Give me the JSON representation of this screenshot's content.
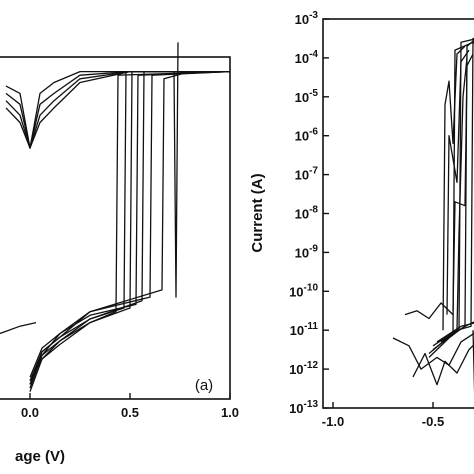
{
  "chart_data": [
    {
      "type": "line",
      "panel_label": "(a)",
      "xlabel": "age (V)",
      "ylabel": "",
      "xlim": [
        -0.2,
        1.0
      ],
      "x_ticks": [
        {
          "value": 0.0,
          "label": "0.0"
        },
        {
          "value": 0.5,
          "label": "0.5"
        },
        {
          "value": 1.0,
          "label": "1.0"
        }
      ],
      "y_scale": "log",
      "ylim_exp": [
        -13,
        -3
      ],
      "y_ticks": [],
      "grid": false,
      "legend": "none",
      "series": [
        {
          "values": [
            [
              -0.12,
              -4.4
            ],
            [
              -0.05,
              -4.6
            ],
            [
              0.0,
              -6.1
            ],
            [
              0.05,
              -4.6
            ],
            [
              0.12,
              -4.3
            ],
            [
              0.25,
              -4.0
            ],
            [
              0.5,
              -4.0
            ],
            [
              1.0,
              -4.0
            ]
          ]
        },
        {
          "values": [
            [
              -0.12,
              -4.6
            ],
            [
              -0.05,
              -4.9
            ],
            [
              0.0,
              -6.1
            ],
            [
              0.05,
              -4.9
            ],
            [
              0.12,
              -4.6
            ],
            [
              0.25,
              -4.1
            ],
            [
              0.5,
              -4.0
            ],
            [
              1.0,
              -4.0
            ]
          ]
        },
        {
          "values": [
            [
              -0.12,
              -4.8
            ],
            [
              -0.05,
              -5.2
            ],
            [
              0.0,
              -6.1
            ],
            [
              0.05,
              -5.2
            ],
            [
              0.12,
              -4.8
            ],
            [
              0.25,
              -4.2
            ],
            [
              0.5,
              -4.0
            ],
            [
              1.0,
              -4.0
            ]
          ]
        },
        {
          "values": [
            [
              -0.12,
              -5.0
            ],
            [
              -0.05,
              -5.4
            ],
            [
              0.0,
              -6.1
            ],
            [
              0.05,
              -5.4
            ],
            [
              0.12,
              -5.0
            ],
            [
              0.25,
              -4.3
            ],
            [
              0.5,
              -4.0
            ],
            [
              1.0,
              -4.0
            ]
          ]
        },
        {
          "values": [
            [
              0.0,
              -12.7
            ],
            [
              0.06,
              -11.8
            ],
            [
              0.15,
              -11.4
            ],
            [
              0.3,
              -10.9
            ],
            [
              0.43,
              -10.6
            ],
            [
              0.44,
              -4.1
            ],
            [
              1.0,
              -4.0
            ]
          ]
        },
        {
          "values": [
            [
              0.0,
              -12.6
            ],
            [
              0.06,
              -11.7
            ],
            [
              0.15,
              -11.3
            ],
            [
              0.3,
              -10.8
            ],
            [
              0.47,
              -10.5
            ],
            [
              0.48,
              -4.0
            ],
            [
              1.0,
              -4.0
            ]
          ]
        },
        {
          "values": [
            [
              0.0,
              -12.5
            ],
            [
              0.06,
              -11.9
            ],
            [
              0.15,
              -11.5
            ],
            [
              0.3,
              -10.9
            ],
            [
              0.5,
              -10.5
            ],
            [
              0.51,
              -4.0
            ],
            [
              1.0,
              -4.0
            ]
          ]
        },
        {
          "values": [
            [
              0.0,
              -12.4
            ],
            [
              0.06,
              -11.6
            ],
            [
              0.15,
              -11.2
            ],
            [
              0.3,
              -10.7
            ],
            [
              0.53,
              -10.4
            ],
            [
              0.54,
              -4.1
            ],
            [
              1.0,
              -4.0
            ]
          ]
        },
        {
          "values": [
            [
              0.0,
              -12.8
            ],
            [
              0.06,
              -11.9
            ],
            [
              0.15,
              -11.4
            ],
            [
              0.3,
              -10.8
            ],
            [
              0.56,
              -10.3
            ],
            [
              0.57,
              -4.0
            ],
            [
              1.0,
              -4.0
            ]
          ]
        },
        {
          "values": [
            [
              0.0,
              -12.5
            ],
            [
              0.06,
              -11.7
            ],
            [
              0.15,
              -11.3
            ],
            [
              0.3,
              -10.6
            ],
            [
              0.6,
              -10.2
            ],
            [
              0.61,
              -4.1
            ],
            [
              1.0,
              -4.0
            ]
          ]
        },
        {
          "values": [
            [
              0.0,
              -12.6
            ],
            [
              0.06,
              -11.8
            ],
            [
              0.15,
              -11.2
            ],
            [
              0.3,
              -10.6
            ],
            [
              0.66,
              -10.0
            ],
            [
              0.67,
              -4.2
            ],
            [
              0.8,
              -4.0
            ],
            [
              1.0,
              -4.0
            ]
          ]
        },
        {
          "values": [
            [
              0.72,
              -4.0
            ],
            [
              0.73,
              -10.2
            ],
            [
              0.74,
              -3.2
            ]
          ]
        },
        {
          "values": [
            [
              -0.15,
              -11.2
            ],
            [
              -0.05,
              -11.0
            ],
            [
              0.03,
              -10.9
            ]
          ]
        }
      ]
    },
    {
      "type": "line",
      "panel_label": "",
      "xlabel": "",
      "ylabel": "Current (A)",
      "xlim": [
        -1.05,
        -0.05
      ],
      "x_ticks": [
        {
          "value": -1.0,
          "label": "-1.0"
        },
        {
          "value": -0.5,
          "label": "-0.5"
        }
      ],
      "y_scale": "log",
      "ylim_exp": [
        -13,
        -3
      ],
      "y_ticks": [
        {
          "value": -3,
          "base": "10",
          "exp": "-3"
        },
        {
          "value": -4,
          "base": "10",
          "exp": "-4"
        },
        {
          "value": -5,
          "base": "10",
          "exp": "-5"
        },
        {
          "value": -6,
          "base": "10",
          "exp": "-6"
        },
        {
          "value": -7,
          "base": "10",
          "exp": "-7"
        },
        {
          "value": -8,
          "base": "10",
          "exp": "-8"
        },
        {
          "value": -9,
          "base": "10",
          "exp": "-9"
        },
        {
          "value": -10,
          "base": "10",
          "exp": "-10"
        },
        {
          "value": -11,
          "base": "10",
          "exp": "-11"
        },
        {
          "value": -12,
          "base": "10",
          "exp": "-12"
        },
        {
          "value": -13,
          "base": "10",
          "exp": "-13"
        }
      ],
      "grid": false,
      "legend": "none",
      "series": [
        {
          "values": [
            [
              -0.52,
              -11.6
            ],
            [
              -0.45,
              -11.3
            ],
            [
              -0.4,
              -11.1
            ],
            [
              -0.39,
              -3.8
            ],
            [
              -0.3,
              -3.6
            ],
            [
              -0.24,
              -3.8
            ]
          ]
        },
        {
          "values": [
            [
              -0.52,
              -11.7
            ],
            [
              -0.42,
              -11.2
            ],
            [
              -0.37,
              -11.0
            ],
            [
              -0.36,
              -3.6
            ],
            [
              -0.28,
              -3.5
            ],
            [
              -0.24,
              -4.0
            ]
          ]
        },
        {
          "values": [
            [
              -0.5,
              -11.5
            ],
            [
              -0.4,
              -11.1
            ],
            [
              -0.34,
              -10.9
            ],
            [
              -0.33,
              -3.7
            ],
            [
              -0.26,
              -3.4
            ],
            [
              -0.24,
              -3.7
            ]
          ]
        },
        {
          "values": [
            [
              -0.5,
              -11.4
            ],
            [
              -0.38,
              -11.0
            ],
            [
              -0.31,
              -10.9
            ],
            [
              -0.3,
              -3.5
            ],
            [
              -0.24,
              -3.5
            ]
          ]
        },
        {
          "values": [
            [
              -0.48,
              -11.3
            ],
            [
              -0.36,
              -10.9
            ],
            [
              -0.28,
              -10.8
            ],
            [
              -0.27,
              -3.6
            ],
            [
              -0.24,
              -3.4
            ]
          ]
        },
        {
          "values": [
            [
              -0.46,
              -11.3
            ],
            [
              -0.34,
              -10.9
            ],
            [
              -0.26,
              -10.7
            ],
            [
              -0.25,
              -3.8
            ],
            [
              -0.24,
              -3.6
            ]
          ]
        },
        {
          "values": [
            [
              -0.45,
              -11.0
            ],
            [
              -0.44,
              -5.2
            ],
            [
              -0.42,
              -4.6
            ],
            [
              -0.4,
              -6.2
            ],
            [
              -0.38,
              -3.9
            ],
            [
              -0.34,
              -3.7
            ]
          ]
        },
        {
          "values": [
            [
              -0.43,
              -10.6
            ],
            [
              -0.42,
              -6.0
            ],
            [
              -0.38,
              -7.2
            ],
            [
              -0.36,
              -4.1
            ],
            [
              -0.32,
              -3.8
            ]
          ]
        },
        {
          "values": [
            [
              -0.4,
              -10.5
            ],
            [
              -0.39,
              -7.7
            ],
            [
              -0.34,
              -7.8
            ],
            [
              -0.33,
              -4.2
            ],
            [
              -0.3,
              -3.9
            ]
          ]
        },
        {
          "values": [
            [
              -0.38,
              -11.0
            ],
            [
              -0.37,
              -8.5
            ],
            [
              -0.35,
              -5.0
            ],
            [
              -0.33,
              -4.0
            ]
          ]
        },
        {
          "values": [
            [
              -0.7,
              -11.2
            ],
            [
              -0.62,
              -11.4
            ],
            [
              -0.56,
              -12.0
            ],
            [
              -0.48,
              -11.7
            ],
            [
              -0.42,
              -11.9
            ],
            [
              -0.36,
              -11.3
            ],
            [
              -0.3,
              -11.1
            ],
            [
              -0.24,
              -10.9
            ]
          ]
        },
        {
          "values": [
            [
              -0.6,
              -12.2
            ],
            [
              -0.54,
              -11.6
            ],
            [
              -0.48,
              -12.4
            ],
            [
              -0.44,
              -11.8
            ],
            [
              -0.38,
              -12.1
            ],
            [
              -0.32,
              -11.5
            ],
            [
              -0.26,
              -11.2
            ]
          ]
        },
        {
          "values": [
            [
              -0.64,
              -10.6
            ],
            [
              -0.58,
              -10.5
            ],
            [
              -0.52,
              -10.7
            ],
            [
              -0.46,
              -10.3
            ],
            [
              -0.4,
              -10.6
            ]
          ]
        },
        {
          "values": [
            [
              -0.3,
              -11.0
            ],
            [
              -0.29,
              -13.0
            ],
            [
              -0.28,
              -11.2
            ],
            [
              -0.26,
              -12.6
            ],
            [
              -0.24,
              -11.0
            ]
          ]
        }
      ]
    }
  ]
}
